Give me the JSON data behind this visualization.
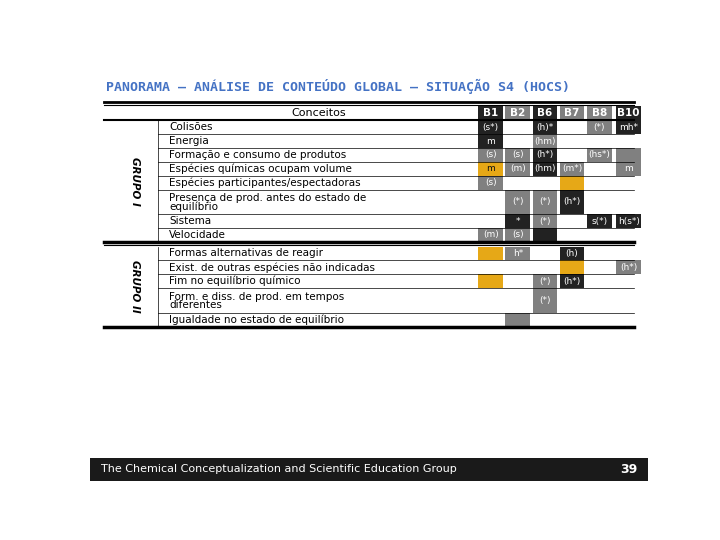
{
  "title": "PANORAMA – ANÁLISE DE CONTEÚDO GLOBAL – SITUAÇÃO S4 (HOCS)",
  "title_color": "#4472c4",
  "bg_color": "#ffffff",
  "footer_text": "The Chemical Conceptualization and Scientific Education Group",
  "footer_number": "39",
  "grupo1_label": "GRUPO I",
  "grupo2_label": "GRUPO II",
  "grupo1_rows": [
    {
      "concept": "Colisões",
      "B1": {
        "color": "#222222",
        "text": "(s*)"
      },
      "B2": {
        "color": null,
        "text": ""
      },
      "B6": {
        "color": "#222222",
        "text": "(h)*"
      },
      "B7": {
        "color": null,
        "text": ""
      },
      "B8": {
        "color": "#808080",
        "text": "(*)"
      },
      "B10": {
        "color": "#222222",
        "text": "mh*"
      }
    },
    {
      "concept": "Energia",
      "B1": {
        "color": "#222222",
        "text": "m"
      },
      "B2": {
        "color": null,
        "text": ""
      },
      "B6": {
        "color": "#808080",
        "text": "(hm)"
      },
      "B7": {
        "color": null,
        "text": ""
      },
      "B8": {
        "color": null,
        "text": ""
      },
      "B10": {
        "color": null,
        "text": ""
      }
    },
    {
      "concept": "Formação e consumo de produtos",
      "B1": {
        "color": "#808080",
        "text": "(s)"
      },
      "B2": {
        "color": "#808080",
        "text": "(s)"
      },
      "B6": {
        "color": "#222222",
        "text": "(h*)"
      },
      "B7": {
        "color": null,
        "text": ""
      },
      "B8": {
        "color": "#808080",
        "text": "(hs*)"
      },
      "B10": {
        "color": "#808080",
        "text": ""
      }
    },
    {
      "concept": "Espécies químicas ocupam volume",
      "B1": {
        "color": "#e6a817",
        "text": "m"
      },
      "B2": {
        "color": "#808080",
        "text": "(m)"
      },
      "B6": {
        "color": "#222222",
        "text": "(hm)"
      },
      "B7": {
        "color": "#808080",
        "text": "(m*)"
      },
      "B8": {
        "color": null,
        "text": ""
      },
      "B10": {
        "color": "#808080",
        "text": "m"
      }
    },
    {
      "concept": "Espécies participantes/espectadoras",
      "B1": {
        "color": "#808080",
        "text": "(s)"
      },
      "B2": {
        "color": null,
        "text": ""
      },
      "B6": {
        "color": null,
        "text": ""
      },
      "B7": {
        "color": "#e6a817",
        "text": ""
      },
      "B8": {
        "color": null,
        "text": ""
      },
      "B10": {
        "color": null,
        "text": ""
      }
    },
    {
      "concept": "Presença de prod. antes do estado de\nequilíbrio",
      "B1": {
        "color": null,
        "text": ""
      },
      "B2": {
        "color": "#808080",
        "text": "(*)"
      },
      "B6": {
        "color": "#808080",
        "text": "(*)"
      },
      "B7": {
        "color": "#222222",
        "text": "(h*)"
      },
      "B8": {
        "color": null,
        "text": ""
      },
      "B10": {
        "color": null,
        "text": ""
      }
    },
    {
      "concept": "Sistema",
      "B1": {
        "color": null,
        "text": ""
      },
      "B2": {
        "color": "#222222",
        "text": "*"
      },
      "B6": {
        "color": "#808080",
        "text": "(*)"
      },
      "B7": {
        "color": null,
        "text": ""
      },
      "B8": {
        "color": "#222222",
        "text": "s(*)"
      },
      "B10": {
        "color": "#222222",
        "text": "h(s*)"
      }
    },
    {
      "concept": "Velocidade",
      "B1": {
        "color": "#808080",
        "text": "(m)"
      },
      "B2": {
        "color": "#808080",
        "text": "(s)"
      },
      "B6": {
        "color": "#222222",
        "text": ""
      },
      "B7": {
        "color": null,
        "text": ""
      },
      "B8": {
        "color": null,
        "text": ""
      },
      "B10": {
        "color": null,
        "text": ""
      }
    }
  ],
  "grupo2_rows": [
    {
      "concept": "Formas alternativas de reagir",
      "B1": {
        "color": "#e6a817",
        "text": ""
      },
      "B2": {
        "color": "#808080",
        "text": "h*"
      },
      "B6": {
        "color": null,
        "text": ""
      },
      "B7": {
        "color": "#222222",
        "text": "(h)"
      },
      "B8": {
        "color": null,
        "text": ""
      },
      "B10": {
        "color": null,
        "text": ""
      }
    },
    {
      "concept": "Exist. de outras espécies não indicadas",
      "B1": {
        "color": null,
        "text": ""
      },
      "B2": {
        "color": null,
        "text": ""
      },
      "B6": {
        "color": null,
        "text": ""
      },
      "B7": {
        "color": "#e6a817",
        "text": ""
      },
      "B8": {
        "color": null,
        "text": ""
      },
      "B10": {
        "color": "#808080",
        "text": "(h*)"
      }
    },
    {
      "concept": "Fim no equilíbrio químico",
      "B1": {
        "color": "#e6a817",
        "text": ""
      },
      "B2": {
        "color": null,
        "text": ""
      },
      "B6": {
        "color": "#808080",
        "text": "(*)"
      },
      "B7": {
        "color": "#222222",
        "text": "(h*)"
      },
      "B8": {
        "color": null,
        "text": ""
      },
      "B10": {
        "color": null,
        "text": ""
      }
    },
    {
      "concept": "Form. e diss. de prod. em tempos\ndiferentes",
      "B1": {
        "color": null,
        "text": ""
      },
      "B2": {
        "color": null,
        "text": ""
      },
      "B6": {
        "color": "#808080",
        "text": "(*)"
      },
      "B7": {
        "color": null,
        "text": ""
      },
      "B8": {
        "color": null,
        "text": ""
      },
      "B10": {
        "color": null,
        "text": ""
      }
    },
    {
      "concept": "Igualdade no estado de equilíbrio",
      "B1": {
        "color": null,
        "text": ""
      },
      "B2": {
        "color": "#808080",
        "text": ""
      },
      "B6": {
        "color": null,
        "text": ""
      },
      "B7": {
        "color": null,
        "text": ""
      },
      "B8": {
        "color": null,
        "text": ""
      },
      "B10": {
        "color": null,
        "text": ""
      }
    }
  ],
  "col_header_colors": {
    "B1": "#222222",
    "B2": "#808080",
    "B6": "#222222",
    "B7": "#808080",
    "B8": "#808080",
    "B10": "#222222"
  },
  "col_order": [
    "B1",
    "B2",
    "B6",
    "B7",
    "B8",
    "B10"
  ]
}
